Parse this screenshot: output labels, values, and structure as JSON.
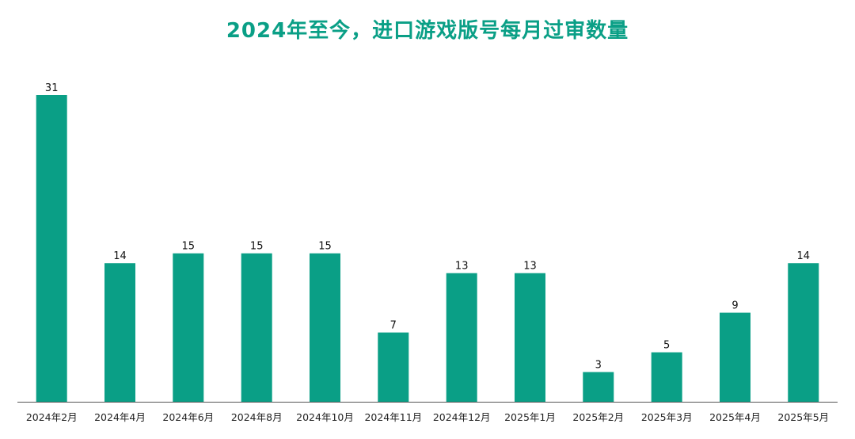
{
  "chart_data": {
    "type": "bar",
    "title": "2024年至今，进口游戏版号每月过审数量",
    "categories": [
      "2024年2月",
      "2024年4月",
      "2024年6月",
      "2024年8月",
      "2024年10月",
      "2024年11月",
      "2024年12月",
      "2025年1月",
      "2025年2月",
      "2025年3月",
      "2025年4月",
      "2025年5月"
    ],
    "values": [
      31,
      14,
      15,
      15,
      15,
      7,
      13,
      13,
      3,
      5,
      9,
      14
    ],
    "xlabel": "",
    "ylabel": "",
    "ylim": [
      0,
      31
    ],
    "grid": false,
    "legend": "none",
    "bar_color": "#0a9f86",
    "axis_color": "#555555"
  }
}
